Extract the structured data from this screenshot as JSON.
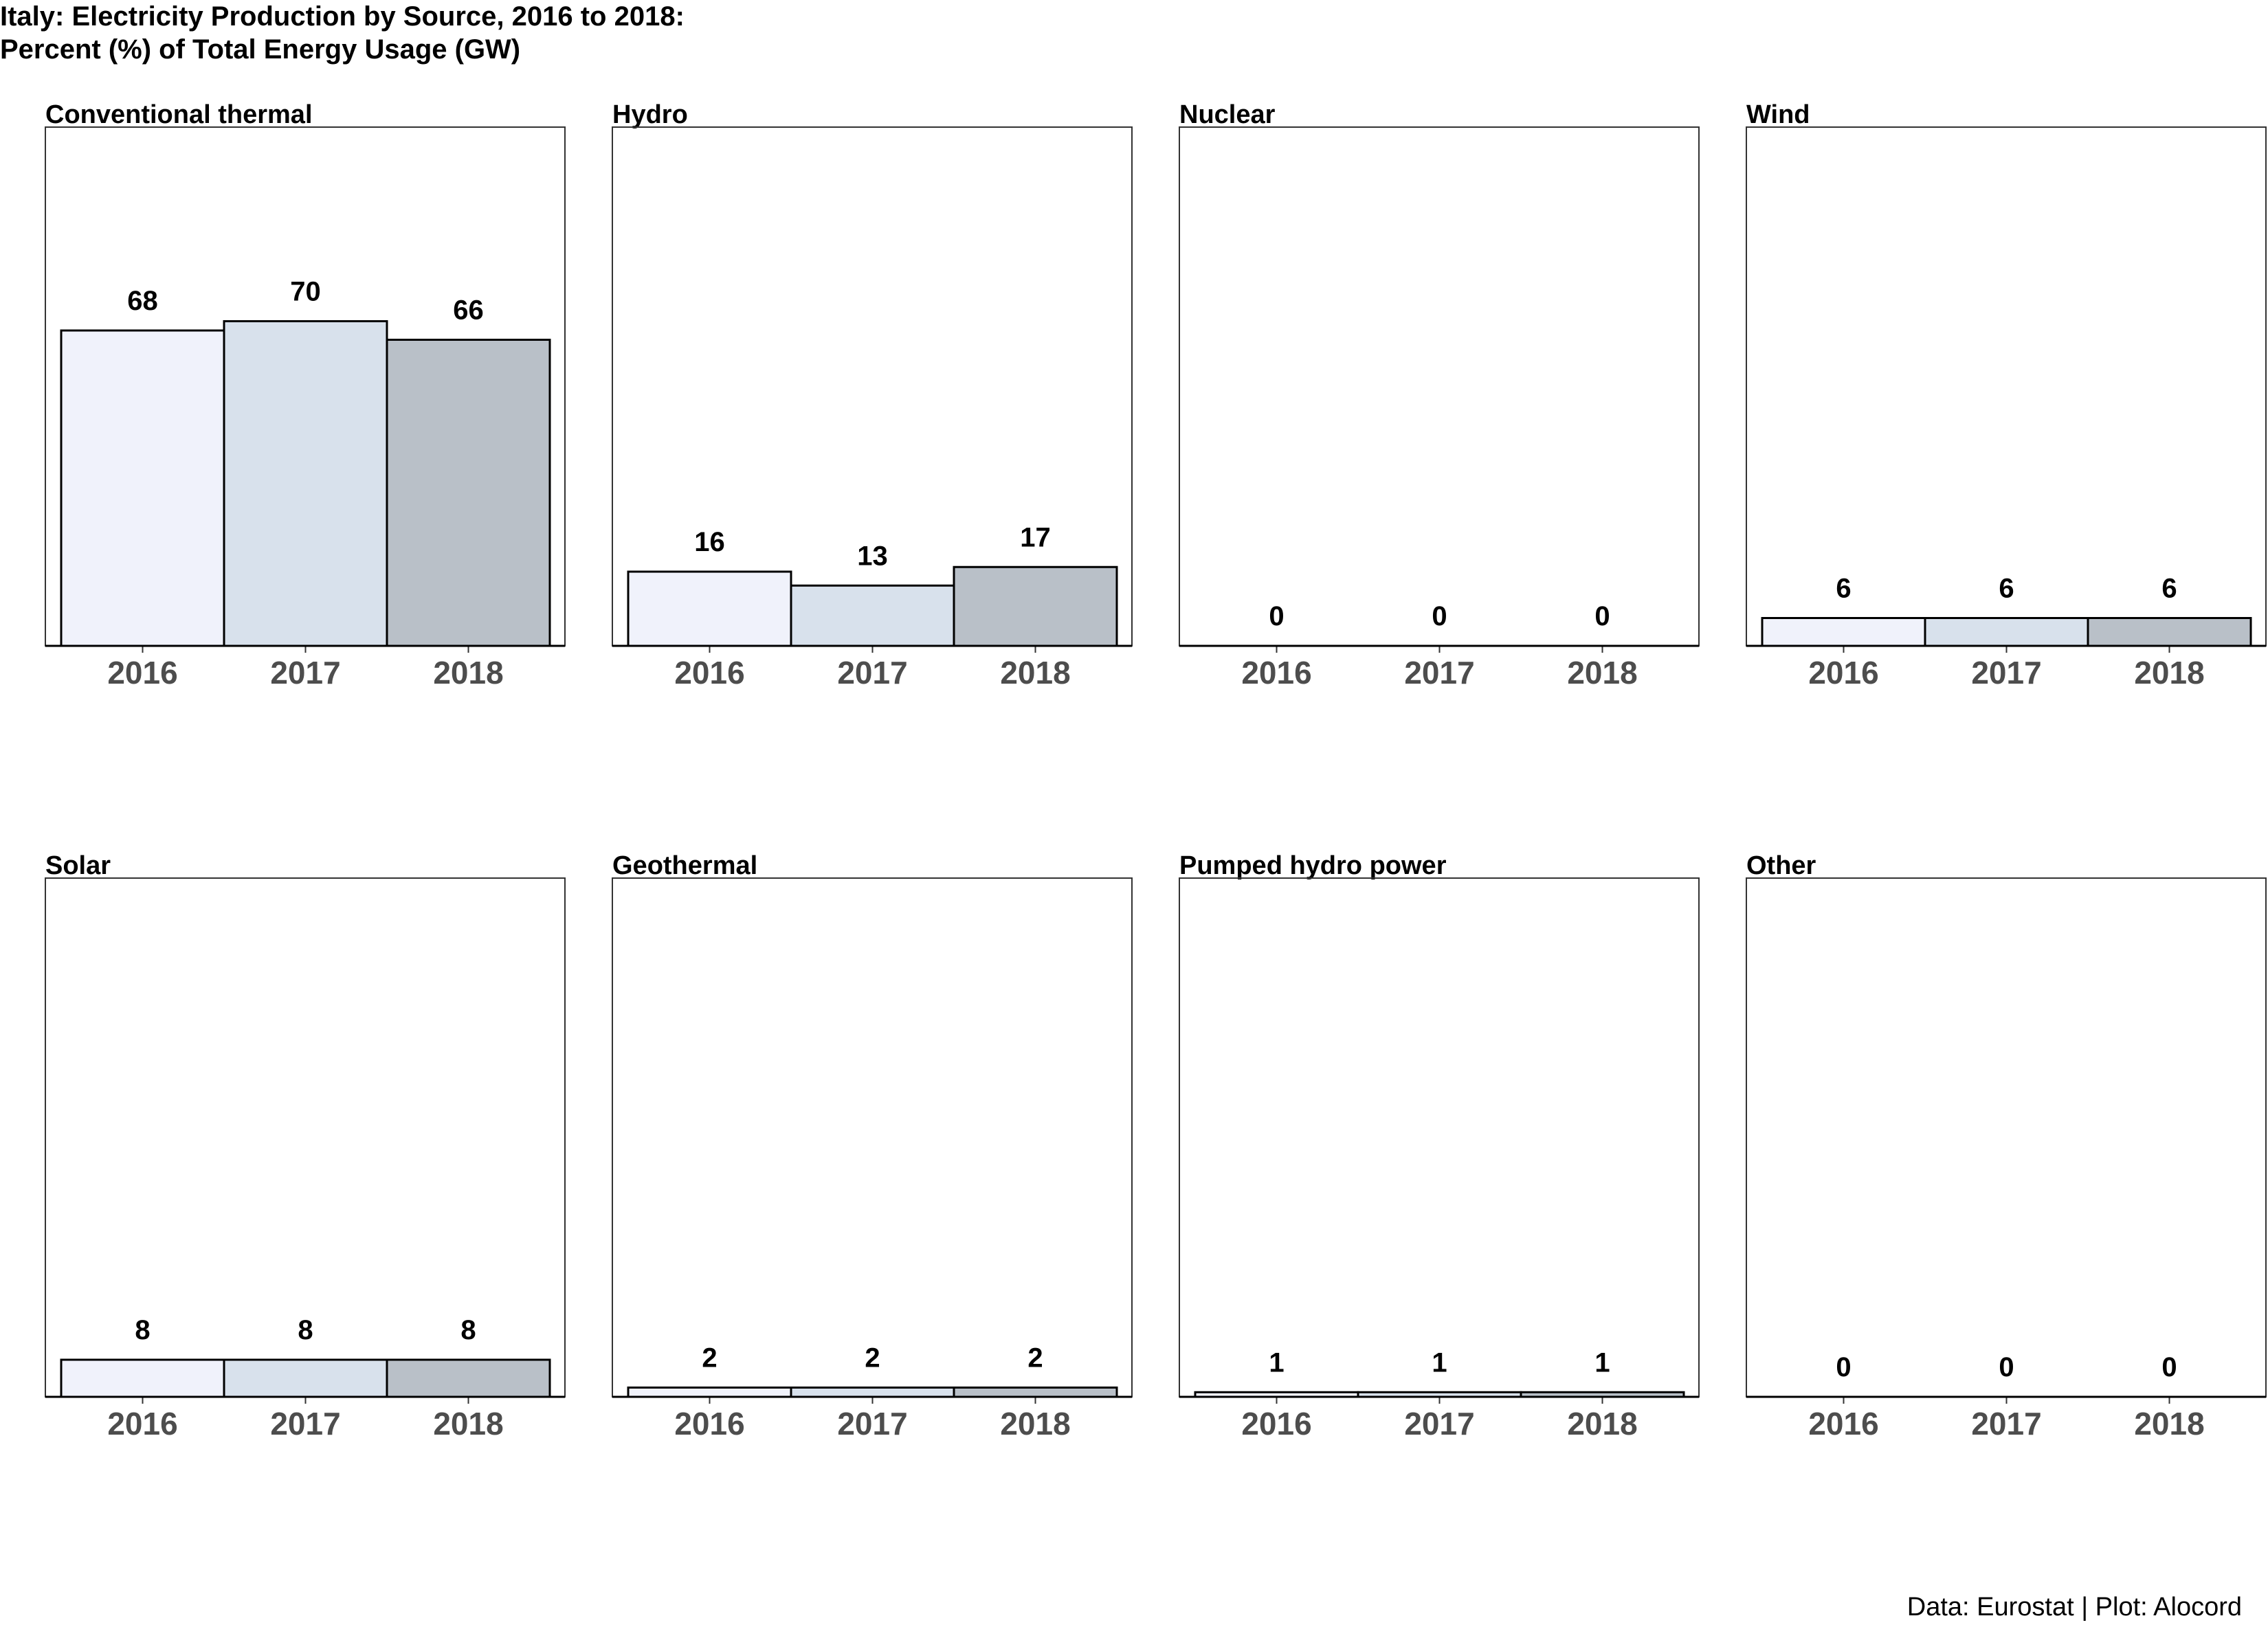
{
  "title_lines": [
    "Italy: Electricity Production by Source, 2016 to 2018:",
    "Percent (%) of Total Energy Usage (GW)"
  ],
  "caption": "Data: Eurostat | Plot: Alocord",
  "colors": {
    "year_fills": [
      "#f0f2fb",
      "#d8e1ec",
      "#b9c0c8"
    ],
    "bar_stroke": "#000000",
    "tick_label": "#4d4d4d",
    "panel_border": "#333333"
  },
  "chart_data": {
    "type": "bar",
    "categories": [
      "2016",
      "2017",
      "2018"
    ],
    "ylim": [
      0,
      80
    ],
    "grid": false,
    "legend": "none",
    "panels": [
      {
        "name": "Conventional thermal",
        "values": [
          68,
          70,
          66
        ],
        "labels": [
          "68",
          "70",
          "66"
        ]
      },
      {
        "name": "Hydro",
        "values": [
          16,
          13,
          17
        ],
        "labels": [
          "16",
          "13",
          "17"
        ]
      },
      {
        "name": "Nuclear",
        "values": [
          0,
          0,
          0
        ],
        "labels": [
          "0",
          "0",
          "0"
        ]
      },
      {
        "name": "Wind",
        "values": [
          6,
          6,
          6
        ],
        "labels": [
          "6",
          "6",
          "6"
        ]
      },
      {
        "name": "Solar",
        "values": [
          8,
          8,
          8
        ],
        "labels": [
          "8",
          "8",
          "8"
        ]
      },
      {
        "name": "Geothermal",
        "values": [
          2,
          2,
          2
        ],
        "labels": [
          "2",
          "2",
          "2"
        ]
      },
      {
        "name": "Pumped hydro power",
        "values": [
          1,
          1,
          1
        ],
        "labels": [
          "1",
          "1",
          "1"
        ]
      },
      {
        "name": "Other",
        "values": [
          0,
          0,
          0
        ],
        "labels": [
          "0",
          "0",
          "0"
        ]
      }
    ]
  }
}
